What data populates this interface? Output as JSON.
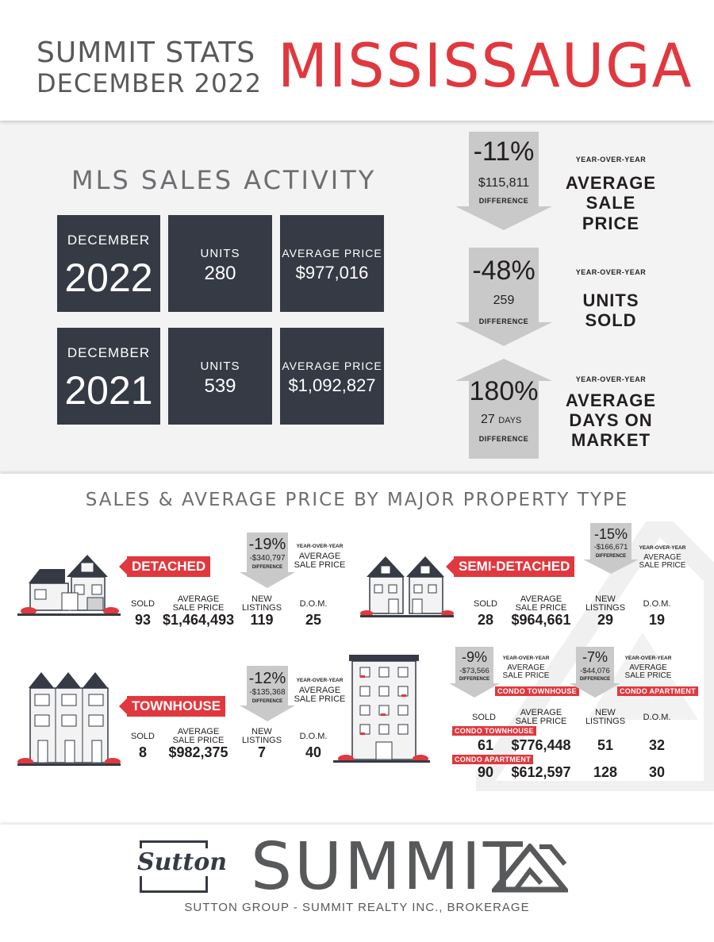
{
  "header": {
    "line1": "SUMMIT STATS",
    "line2": "DECEMBER 2022",
    "city": "MISSISSAUGA"
  },
  "mls": {
    "title": "MLS SALES ACTIVITY",
    "rows": [
      {
        "month": "DECEMBER",
        "year": "2022",
        "units_label": "UNITS",
        "units": "280",
        "price_label": "AVERAGE PRICE",
        "price": "$977,016"
      },
      {
        "month": "DECEMBER",
        "year": "2021",
        "units_label": "UNITS",
        "units": "539",
        "price_label": "AVERAGE PRICE",
        "price": "$1,092,827"
      }
    ]
  },
  "yoy": [
    {
      "pct": "-11%",
      "amount": "$115,811",
      "diff": "DIFFERENCE",
      "small": "YEAR-OVER-YEAR",
      "big1": "AVERAGE",
      "big2": "SALE PRICE",
      "big3": ""
    },
    {
      "pct": "-48%",
      "amount": "259",
      "diff": "DIFFERENCE",
      "small": "YEAR-OVER-YEAR",
      "big1": "UNITS",
      "big2": "SOLD",
      "big3": ""
    },
    {
      "pct": "180%",
      "amount": "27",
      "amount_suffix": "DAYS",
      "diff": "DIFFERENCE",
      "small": "YEAR-OVER-YEAR",
      "big1": "AVERAGE",
      "big2": "DAYS ON",
      "big3": "MARKET"
    }
  ],
  "section2_title": "SALES & AVERAGE PRICE BY MAJOR PROPERTY TYPE",
  "labels": {
    "sold": "SOLD",
    "avg1": "AVERAGE",
    "avg2": "SALE PRICE",
    "new1": "NEW",
    "new2": "LISTINGS",
    "dom": "D.O.M.",
    "yoy": "YEAR-OVER-YEAR",
    "yoy_avg": "AVERAGE",
    "yoy_sp": "SALE PRICE",
    "diff": "DIFFERENCE"
  },
  "detached": {
    "name": "DETACHED",
    "pct": "-19%",
    "amount": "-$340,797",
    "sold": "93",
    "price": "$1,464,493",
    "listings": "119",
    "dom": "25"
  },
  "semi": {
    "name": "SEMI-DETACHED",
    "pct": "-15%",
    "amount": "-$166,671",
    "sold": "28",
    "price": "$964,661",
    "listings": "29",
    "dom": "19"
  },
  "townhouse": {
    "name": "TOWNHOUSE",
    "pct": "-12%",
    "amount": "-$135,368",
    "sold": "8",
    "price": "$982,375",
    "listings": "7",
    "dom": "40"
  },
  "condo": {
    "th_label": "CONDO TOWNHOUSE",
    "apt_label": "CONDO APARTMENT",
    "th_pct": "-9%",
    "th_amount": "-$73,566",
    "apt_pct": "-7%",
    "apt_amount": "-$44,076",
    "th": {
      "sold": "61",
      "price": "$776,448",
      "listings": "51",
      "dom": "32"
    },
    "apt": {
      "sold": "90",
      "price": "$612,597",
      "listings": "128",
      "dom": "30"
    }
  },
  "footer": {
    "sutton": "Sutton",
    "summit": "SUMMIT",
    "brokerage": "SUTTON GROUP - SUMMIT REALTY INC., BROKERAGE"
  },
  "colors": {
    "accent": "#e0383e",
    "dark": "#363a45",
    "grey_arrow": "#c9c9c9",
    "text": "#231f20"
  }
}
